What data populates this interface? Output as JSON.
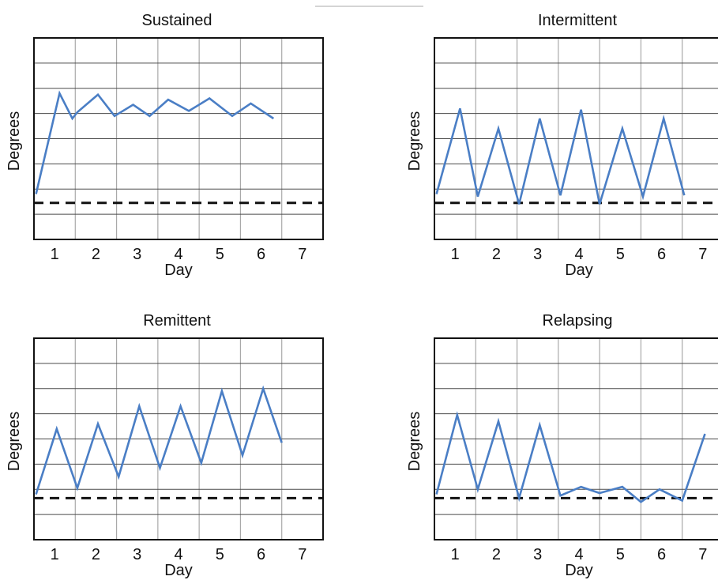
{
  "chart_data": [
    {
      "type": "line",
      "title": "Sustained",
      "xlabel": "Day",
      "ylabel": "Degrees",
      "xticks": [
        "1",
        "2",
        "3",
        "4",
        "5",
        "6",
        "7"
      ],
      "xlim": [
        0.5,
        7.5
      ],
      "ylim": [
        0,
        8
      ],
      "baseline": 1.45,
      "grid": true,
      "line_color": "#4a7ec5",
      "series": [
        {
          "x": [
            0.55,
            1.12,
            1.43,
            1.55,
            2.05,
            2.45,
            2.9,
            3.3,
            3.75,
            4.25,
            4.75,
            5.3,
            5.75,
            6.3
          ],
          "y": [
            1.8,
            5.8,
            4.8,
            5.05,
            5.75,
            4.9,
            5.35,
            4.9,
            5.55,
            5.1,
            5.6,
            4.9,
            5.4,
            4.8
          ]
        }
      ]
    },
    {
      "type": "line",
      "title": "Intermittent",
      "xlabel": "Day",
      "ylabel": "Degrees",
      "xticks": [
        "1",
        "2",
        "3",
        "4",
        "5",
        "6",
        "7"
      ],
      "xlim": [
        0.5,
        7.5
      ],
      "ylim": [
        0,
        8
      ],
      "baseline": 1.45,
      "grid": true,
      "line_color": "#4a7ec5",
      "series": [
        {
          "x": [
            0.55,
            1.12,
            1.55,
            2.05,
            2.55,
            3.05,
            3.55,
            4.05,
            4.5,
            5.05,
            5.55,
            6.05,
            6.55
          ],
          "y": [
            1.8,
            5.2,
            1.7,
            4.4,
            1.4,
            4.8,
            1.75,
            5.15,
            1.4,
            4.4,
            1.7,
            4.8,
            1.75
          ]
        }
      ]
    },
    {
      "type": "line",
      "title": "Remittent",
      "xlabel": "Day",
      "ylabel": "Degrees",
      "xticks": [
        "1",
        "2",
        "3",
        "4",
        "5",
        "6",
        "7"
      ],
      "xlim": [
        0.5,
        7.5
      ],
      "ylim": [
        0,
        8
      ],
      "baseline": 1.65,
      "grid": true,
      "line_color": "#4a7ec5",
      "series": [
        {
          "x": [
            0.55,
            1.05,
            1.55,
            2.05,
            2.55,
            3.05,
            3.55,
            4.05,
            4.55,
            5.05,
            5.55,
            6.05,
            6.5
          ],
          "y": [
            1.8,
            4.4,
            2.05,
            4.6,
            2.5,
            5.3,
            2.85,
            5.3,
            3.05,
            5.9,
            3.35,
            6.0,
            3.85
          ]
        }
      ]
    },
    {
      "type": "line",
      "title": "Relapsing",
      "xlabel": "Day",
      "ylabel": "Degrees",
      "xticks": [
        "1",
        "2",
        "3",
        "4",
        "5",
        "6",
        "7"
      ],
      "xlim": [
        0.5,
        7.5
      ],
      "ylim": [
        0,
        8
      ],
      "baseline": 1.65,
      "grid": true,
      "line_color": "#4a7ec5",
      "series": [
        {
          "x": [
            0.55,
            1.05,
            1.55,
            2.05,
            2.55,
            3.05,
            3.55,
            4.05,
            4.5,
            5.05,
            5.5,
            5.95,
            6.5,
            7.05
          ],
          "y": [
            1.8,
            4.95,
            2.0,
            4.7,
            1.65,
            4.55,
            1.75,
            2.1,
            1.85,
            2.1,
            1.5,
            2.0,
            1.55,
            4.2
          ]
        }
      ]
    }
  ]
}
